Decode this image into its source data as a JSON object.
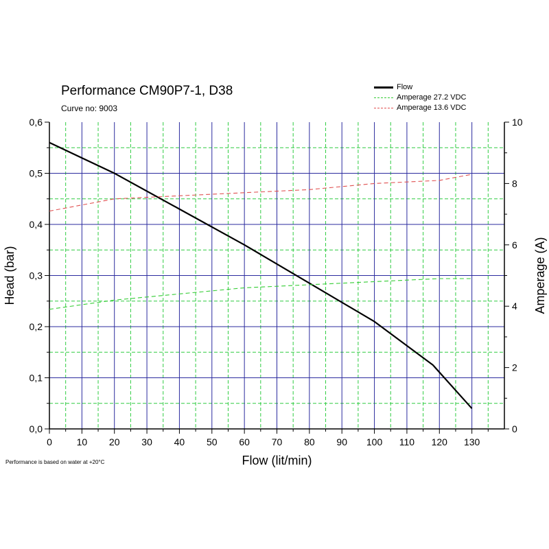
{
  "chart_data": {
    "type": "line",
    "title": "Performance CM90P7-1, D38",
    "subtitle": "Curve no: 9003",
    "xlabel": "Flow (lit/min)",
    "ylabel": "Head (bar)",
    "y2label": "Amperage (A)",
    "footnote": "Performance is based on water at +20°C",
    "xlim": [
      0,
      140
    ],
    "ylim": [
      0,
      0.6
    ],
    "y2lim": [
      0,
      10
    ],
    "xticks": [
      "0",
      "10",
      "20",
      "30",
      "40",
      "50",
      "60",
      "70",
      "80",
      "90",
      "100",
      "110",
      "120",
      "130"
    ],
    "yticks": [
      "0,0",
      "0,1",
      "0,2",
      "0,3",
      "0,4",
      "0,5",
      "0,6"
    ],
    "y2ticks": [
      "0",
      "2",
      "4",
      "6",
      "8",
      "10"
    ],
    "grid": true,
    "legend_position": "top-right",
    "series": [
      {
        "name": "Flow",
        "axis": "left",
        "style": "solid",
        "color": "#000000",
        "x": [
          0,
          20,
          40,
          60,
          80,
          100,
          118,
          130
        ],
        "y": [
          0.56,
          0.5,
          0.43,
          0.36,
          0.285,
          0.21,
          0.125,
          0.04
        ]
      },
      {
        "name": "Amperage 27.2 VDC",
        "axis": "right",
        "style": "dashed",
        "color": "#33cc33",
        "x": [
          0,
          20,
          40,
          60,
          80,
          100,
          120,
          130
        ],
        "y": [
          3.9,
          4.2,
          4.4,
          4.6,
          4.7,
          4.8,
          4.9,
          4.9
        ]
      },
      {
        "name": "Amperage 13.6 VDC",
        "axis": "right",
        "style": "dashed",
        "color": "#e05050",
        "x": [
          0,
          20,
          40,
          60,
          80,
          100,
          120,
          130
        ],
        "y": [
          7.1,
          7.5,
          7.6,
          7.7,
          7.8,
          8.0,
          8.1,
          8.3
        ]
      }
    ]
  }
}
